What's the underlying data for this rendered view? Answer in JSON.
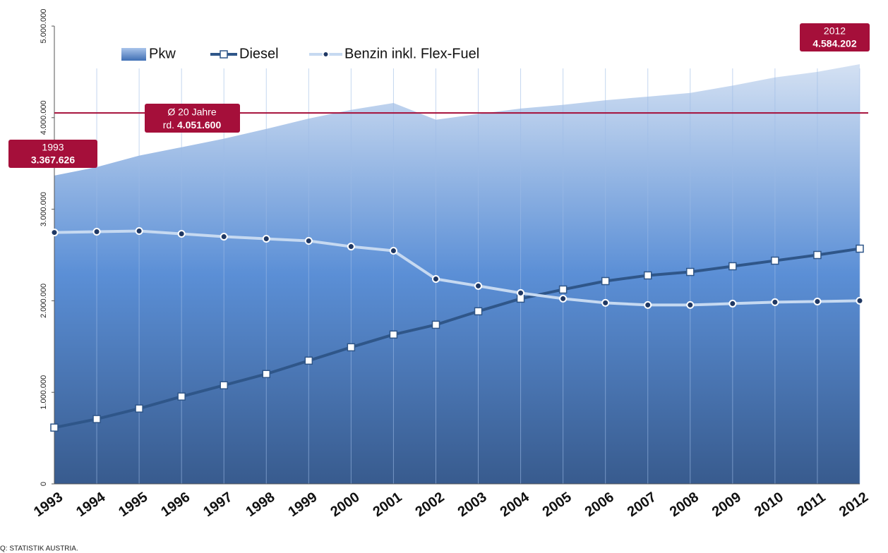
{
  "chart_data": {
    "type": "line",
    "categories": [
      "1993",
      "1994",
      "1995",
      "1996",
      "1997",
      "1998",
      "1999",
      "2000",
      "2001",
      "2002",
      "2003",
      "2004",
      "2005",
      "2006",
      "2007",
      "2008",
      "2009",
      "2010",
      "2011",
      "2012"
    ],
    "series": [
      {
        "name": "Pkw",
        "style": "area",
        "color": "#5b8fd6",
        "values": [
          3367626,
          3460000,
          3585000,
          3677000,
          3770000,
          3877000,
          3990000,
          4085000,
          4160000,
          3977000,
          4040000,
          4100000,
          4140000,
          4190000,
          4230000,
          4270000,
          4350000,
          4440000,
          4500000,
          4584202
        ]
      },
      {
        "name": "Diesel",
        "style": "square",
        "color": "#2f5689",
        "values": [
          615000,
          708000,
          823000,
          954000,
          1077000,
          1200000,
          1346000,
          1492000,
          1631000,
          1738000,
          1885000,
          2023000,
          2123000,
          2215000,
          2277000,
          2315000,
          2377000,
          2438000,
          2500000,
          2569000
        ]
      },
      {
        "name": "Benzin inkl. Flex-Fuel",
        "style": "dot",
        "color": "#c6d9f1",
        "values": [
          2746000,
          2754000,
          2762000,
          2731000,
          2700000,
          2677000,
          2654000,
          2592000,
          2546000,
          2238000,
          2162000,
          2085000,
          2023000,
          1977000,
          1954000,
          1954000,
          1969000,
          1985000,
          1992000,
          2000000
        ]
      }
    ],
    "ylim": [
      0,
      5000000
    ],
    "yticks": [
      0,
      {
        "value": 1000000,
        "label": "1.000.000"
      },
      {
        "value": 2000000,
        "label": "2.000.000"
      },
      {
        "value": 3000000,
        "label": "3.000.000"
      },
      {
        "value": 4000000,
        "label": "4.000.000"
      },
      {
        "value": 5000000,
        "label": "5.000.000"
      }
    ],
    "average_line": {
      "title": "Ø 20 Jahre",
      "prefix": "rd.",
      "value": 4051600,
      "label": "4.051.600",
      "color": "#a50f3a"
    },
    "annotations": [
      {
        "year": "1993",
        "label": "3.367.626"
      },
      {
        "year": "2012",
        "label": "4.584.202"
      }
    ],
    "legend": "top",
    "source": "Q: STATISTIK AUSTRIA."
  }
}
